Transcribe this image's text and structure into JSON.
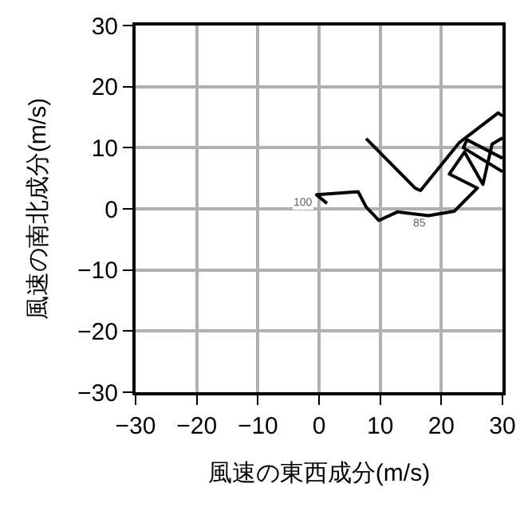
{
  "chart_data": {
    "type": "line",
    "xlabel": "風速の東西成分(m/s)",
    "ylabel": "風速の南北成分(m/s)",
    "x": [
      1.3,
      -0.4,
      6.4,
      7.7,
      9.8,
      12.8,
      17.9,
      22.1,
      25.9,
      21.3,
      23.8,
      26.8,
      28.3,
      30,
      null,
      30,
      23.6,
      24.2,
      30,
      null,
      30,
      29.3,
      22.9,
      16.6,
      15.7,
      7.7
    ],
    "series": [
      {
        "color": "#000000",
        "values": [
          0.9,
          2.3,
          2.8,
          0.3,
          -1.9,
          -0.5,
          -1.1,
          -0.4,
          3.4,
          5.7,
          9.3,
          4.0,
          10.6,
          11.6,
          null,
          6.1,
          10.0,
          11.3,
          8.3,
          null,
          15.2,
          15.7,
          10.8,
          3.0,
          3.4,
          11.5
        ]
      }
    ],
    "annotations": [
      {
        "text": "100",
        "x": -0.4,
        "y": 2.3
      },
      {
        "text": "85",
        "x": 17.9,
        "y": -1.1
      }
    ],
    "xlim": [
      -30,
      30
    ],
    "ylim": [
      -30,
      30
    ],
    "xticks": [
      -30,
      -20,
      -10,
      0,
      10,
      20,
      30
    ],
    "yticks": [
      -30,
      -20,
      -10,
      0,
      10,
      20,
      30
    ],
    "grid": true,
    "marker": "none",
    "line_style": "solid"
  }
}
